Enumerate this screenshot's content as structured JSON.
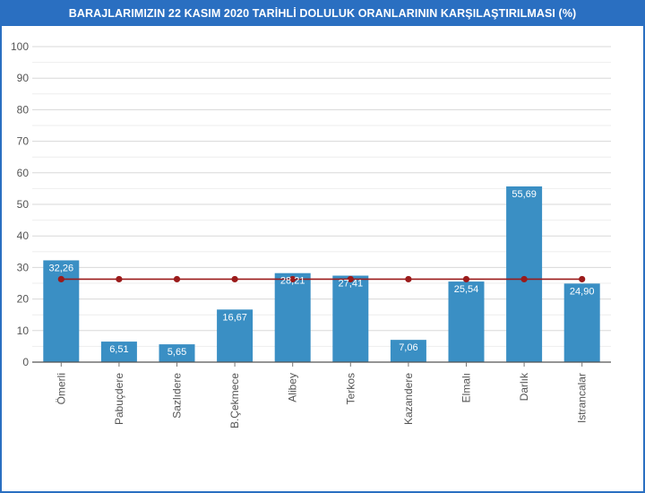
{
  "title": "BARAJLARIMIZIN 22 KASIM 2020 TARİHLİ DOLULUK ORANLARININ KARŞILAŞTIRILMASI (%)",
  "colors": {
    "frame": "#2a6fc1",
    "bar": "#3a8fc4",
    "average_line": "#9b1b1b",
    "grid": "#d8d8d8"
  },
  "chart_data": {
    "type": "bar",
    "title": "BARAJLARIMIZIN 22 KASIM 2020 TARİHLİ DOLULUK ORANLARININ KARŞILAŞTIRILMASI (%)",
    "categories": [
      "Ömerli",
      "Pabuçdere",
      "Sazlıdere",
      "B.Çekmece",
      "Alibey",
      "Terkos",
      "Kazandere",
      "Elmalı",
      "Darlık",
      "Istrancalar"
    ],
    "values": [
      32.26,
      6.51,
      5.65,
      16.67,
      28.21,
      27.41,
      7.06,
      25.54,
      55.69,
      24.9
    ],
    "value_labels": [
      "32,26",
      "6,51",
      "5,65",
      "16,67",
      "28,21",
      "27,41",
      "7,06",
      "25,54",
      "55,69",
      "24,90"
    ],
    "line_series": {
      "type": "line",
      "values": [
        26.3,
        26.3,
        26.3,
        26.3,
        26.3,
        26.3,
        26.3,
        26.3,
        26.3,
        26.3
      ]
    },
    "ylim": [
      0,
      100
    ],
    "yticks": [
      0,
      10,
      20,
      30,
      40,
      50,
      60,
      70,
      80,
      90,
      100
    ],
    "grid": true,
    "xlabel": "",
    "ylabel": ""
  }
}
